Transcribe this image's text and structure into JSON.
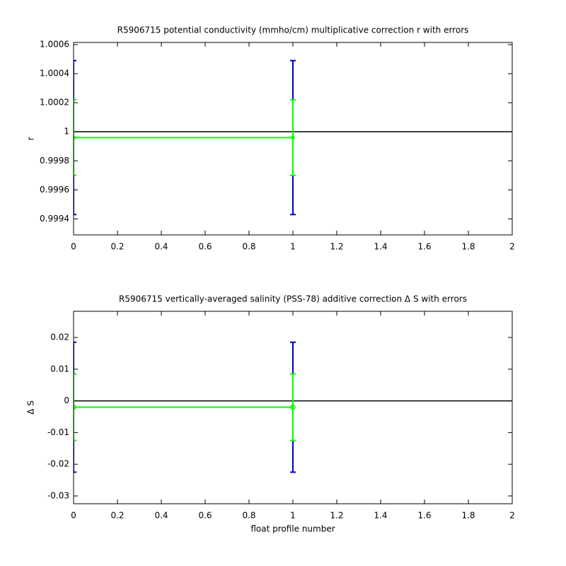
{
  "chart_data": [
    {
      "type": "errorbar",
      "title": "R5906715 potential conductivity (mmho/cm) multiplicative correction r with errors",
      "y_label": "r",
      "marker": "star",
      "x": [
        0,
        1
      ],
      "xlim": [
        0,
        2
      ],
      "xticks": [
        0,
        0.2,
        0.4,
        0.6,
        0.8,
        1,
        1.2,
        1.4,
        1.6,
        1.8,
        2
      ],
      "ylim": [
        0.99929,
        1.000615
      ],
      "yticks": [
        0.9994,
        0.9996,
        0.9998,
        1,
        1.0002,
        1.0004,
        1.0006
      ],
      "reference_line": 1,
      "series": [
        {
          "color": "#00ff00",
          "values": [
            0.99996,
            0.99996
          ],
          "errors": [
            {
              "color": "#0000cc",
              "values": [
                0.00053,
                0.00053
              ]
            },
            {
              "color": "#00ff00",
              "values": [
                0.00026,
                0.00026
              ]
            }
          ]
        }
      ]
    },
    {
      "type": "errorbar",
      "title": "R5906715 vertically-averaged salinity (PSS-78) additive correction Δ S with errors",
      "y_label": "Δ S",
      "x_label": "float profile number",
      "marker": "circle",
      "x": [
        0,
        1
      ],
      "xlim": [
        0,
        2
      ],
      "xticks": [
        0,
        0.2,
        0.4,
        0.6,
        0.8,
        1,
        1.2,
        1.4,
        1.6,
        1.8,
        2
      ],
      "ylim": [
        -0.03246,
        0.02826
      ],
      "yticks": [
        -0.03,
        -0.02,
        -0.01,
        0,
        0.01,
        0.02
      ],
      "reference_line": 0,
      "series": [
        {
          "color": "#00ff00",
          "values": [
            -0.002,
            -0.002
          ],
          "errors": [
            {
              "color": "#0000cc",
              "values": [
                0.0205,
                0.0205
              ]
            },
            {
              "color": "#00ff00",
              "values": [
                0.0105,
                0.0105
              ]
            }
          ]
        }
      ]
    }
  ]
}
